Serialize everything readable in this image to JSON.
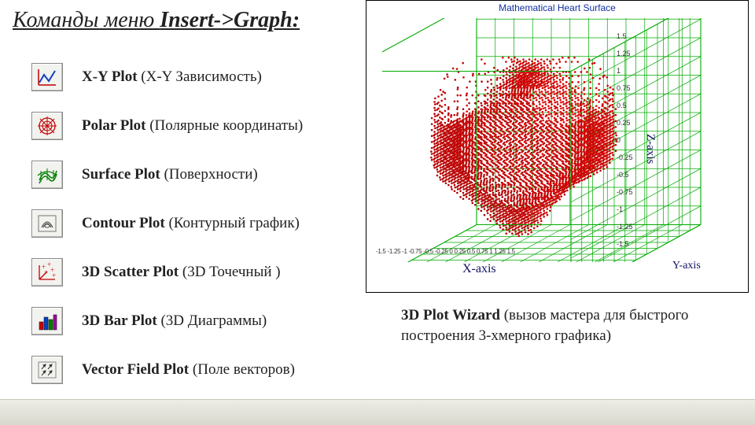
{
  "title_plain": "Команды меню ",
  "title_bold": "Insert->Graph:",
  "menu": [
    {
      "icon": "xy",
      "bold": "X-Y Plot",
      "rest": " (Х-Y Зависимость)"
    },
    {
      "icon": "polar",
      "bold": "Polar Plot",
      "rest": " (Полярные координаты)"
    },
    {
      "icon": "surface",
      "bold": "Surface Plot",
      "rest": " (Поверхности)"
    },
    {
      "icon": "contour",
      "bold": "Contour Plot",
      "rest": " (Контурный график)"
    },
    {
      "icon": "scatter3",
      "bold": "3D Scatter Plot",
      "rest": " (3D Точечный )"
    },
    {
      "icon": "bar3",
      "bold": "3D Bar Plot",
      "rest": " (3D Диаграммы)"
    },
    {
      "icon": "vector",
      "bold": "Vector Field Plot",
      "rest": " (Поле векторов)"
    }
  ],
  "chart": {
    "title": "Mathematical Heart Surface",
    "x_label": "X-axis",
    "y_label": "Y-axis",
    "z_label": "Z-axis",
    "axis_range": [
      -1.5,
      1.5
    ],
    "tick_step": 0.25,
    "z_ticks_text": "1.5\n1.25\n1\n0.75\n0.5\n0.25\n0\n-0.25\n-0.5\n-0.75\n-1\n-1.25\n-1.5",
    "x_ticks_text": "-1.5 -1.25 -1 -0.75 -0.5 -0.25 0 0.25 0.5 0.75 1 1.25 1.5",
    "grid_color": "#00aa00",
    "heart_color": "#d40000",
    "background": "#ffffff",
    "frame_color": "#000000"
  },
  "wizard": {
    "bold": "3D Plot Wizard",
    "rest": " (вызов мастера для быстрого построения 3-хмерного графика)"
  }
}
